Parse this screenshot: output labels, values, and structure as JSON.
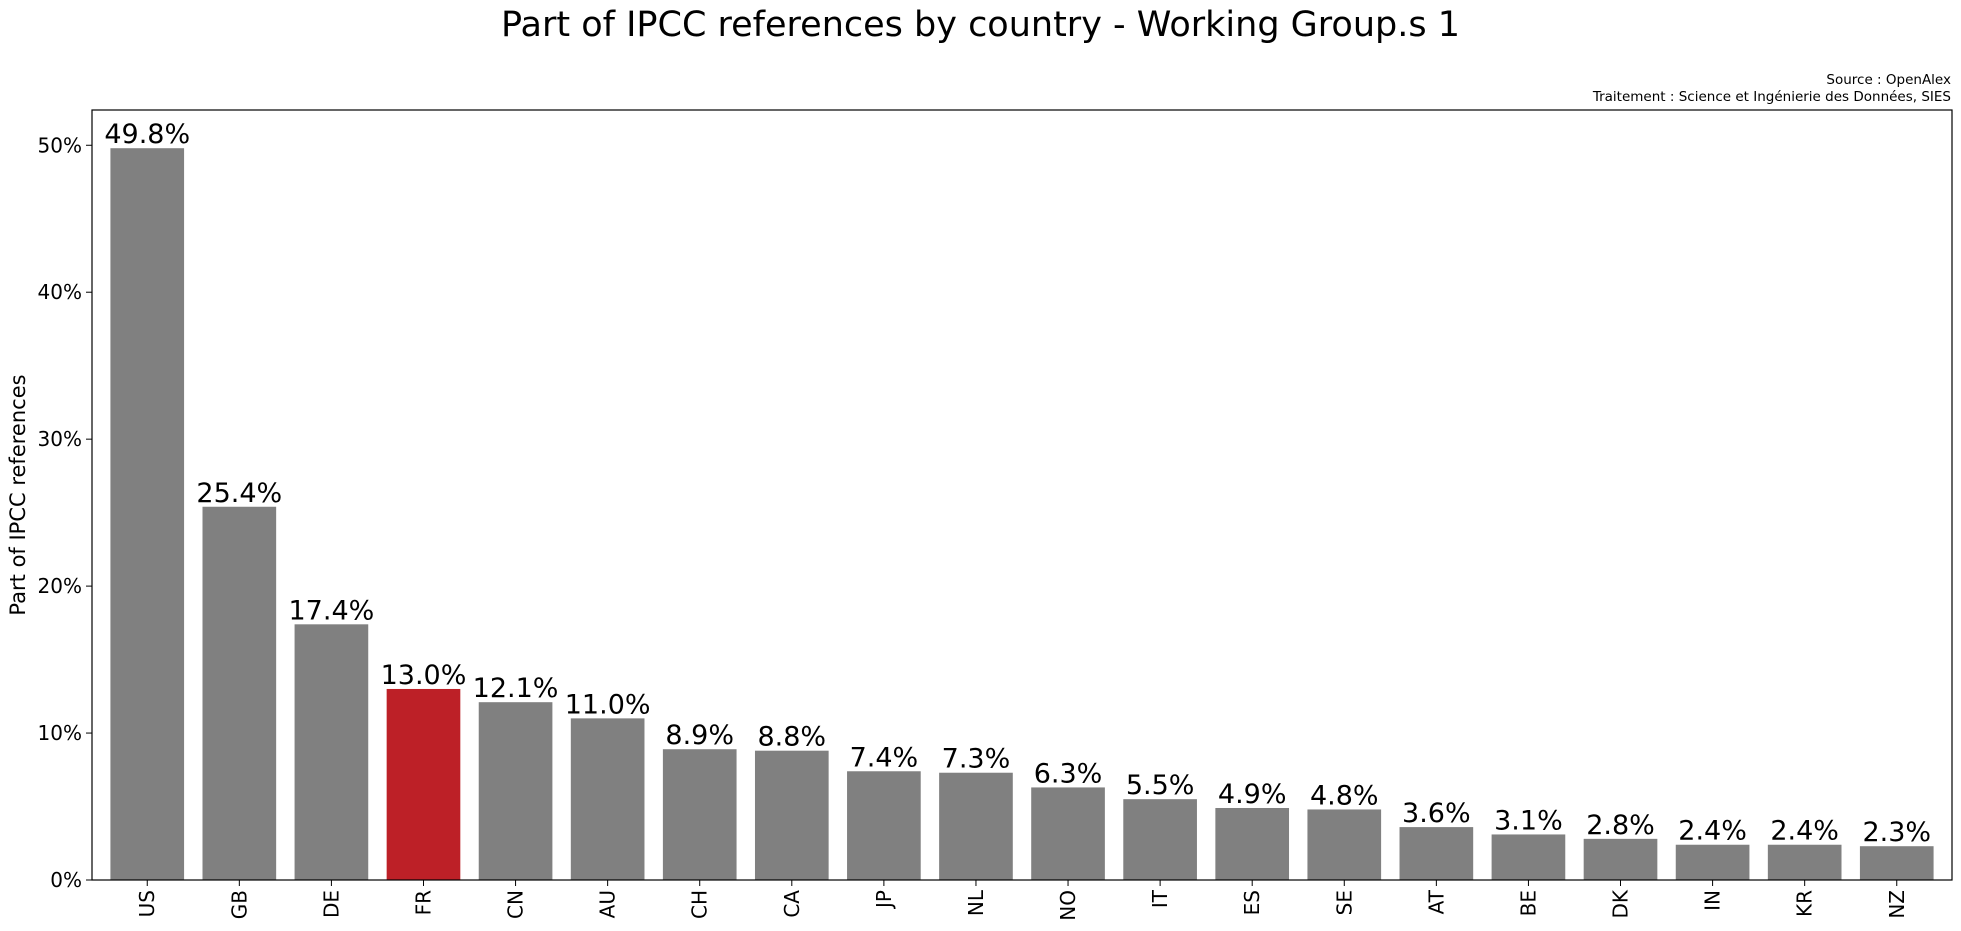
{
  "title": "Part of IPCC references by country - Working Group.s 1",
  "source_lines": [
    "Source : OpenAlex",
    "Traitement : Science et Ingénierie des Données, SIES"
  ],
  "chart_data": {
    "type": "bar",
    "title": "Part of IPCC references by country - Working Group.s 1",
    "xlabel": "",
    "ylabel": "Part of IPCC references",
    "ylim": [
      0,
      52.4
    ],
    "yticks": [
      0,
      10,
      20,
      30,
      40,
      50
    ],
    "ytick_labels": [
      "0%",
      "10%",
      "20%",
      "30%",
      "40%",
      "50%"
    ],
    "categories": [
      "US",
      "GB",
      "DE",
      "FR",
      "CN",
      "AU",
      "CH",
      "CA",
      "JP",
      "NL",
      "NO",
      "IT",
      "ES",
      "SE",
      "AT",
      "BE",
      "DK",
      "IN",
      "KR",
      "NZ"
    ],
    "values": [
      49.8,
      25.4,
      17.4,
      13.0,
      12.1,
      11.0,
      8.9,
      8.8,
      7.4,
      7.3,
      6.3,
      5.5,
      4.9,
      4.8,
      3.6,
      3.1,
      2.8,
      2.4,
      2.4,
      2.3
    ],
    "value_labels": [
      "49.8%",
      "25.4%",
      "17.4%",
      "13.0%",
      "12.1%",
      "11.0%",
      "8.9%",
      "8.8%",
      "7.4%",
      "7.3%",
      "6.3%",
      "5.5%",
      "4.9%",
      "4.8%",
      "3.6%",
      "3.1%",
      "2.8%",
      "2.4%",
      "2.4%",
      "2.3%"
    ],
    "highlight_category": "FR",
    "colors": {
      "bar": "#808080",
      "highlight": "#bd2027"
    },
    "grid": false,
    "legend": "none"
  }
}
